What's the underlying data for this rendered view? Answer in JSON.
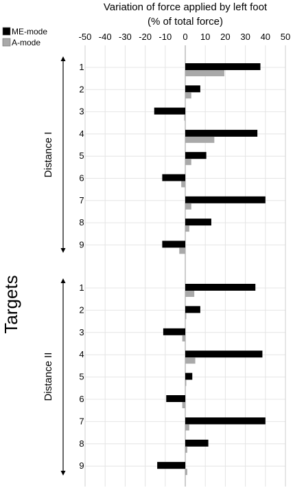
{
  "chart_data": {
    "type": "bar",
    "orientation": "horizontal",
    "title": "Variation of force applied by left foot",
    "subtitle": "(% of total force)",
    "ylabel": "Targets",
    "xlim": [
      -50,
      50
    ],
    "xticks": [
      -50,
      -40,
      -30,
      -20,
      -10,
      0,
      10,
      20,
      30,
      40,
      50
    ],
    "grid": true,
    "legend_position": "top-left",
    "series": [
      {
        "name": "ME-mode",
        "color": "#000000"
      },
      {
        "name": "A-mode",
        "color": "#a9a9a9"
      }
    ],
    "groups": [
      {
        "label": "Distance I",
        "targets": [
          "1",
          "2",
          "3",
          "4",
          "5",
          "6",
          "7",
          "8",
          "9"
        ],
        "me_mode": [
          37.5,
          7.5,
          -15.5,
          36,
          10.5,
          -11.5,
          40,
          13,
          -11.5
        ],
        "a_mode": [
          19.5,
          3,
          -0.5,
          14.5,
          3,
          -2,
          3,
          2,
          -3
        ]
      },
      {
        "label": "Distance II",
        "targets": [
          "1",
          "2",
          "3",
          "4",
          "5",
          "6",
          "7",
          "8",
          "9"
        ],
        "me_mode": [
          35,
          7.5,
          -11,
          38.5,
          3.5,
          -9.5,
          40,
          11.5,
          -14
        ],
        "a_mode": [
          4.5,
          0.5,
          -1.5,
          5,
          0.5,
          -1.5,
          2,
          1,
          1
        ]
      }
    ]
  }
}
